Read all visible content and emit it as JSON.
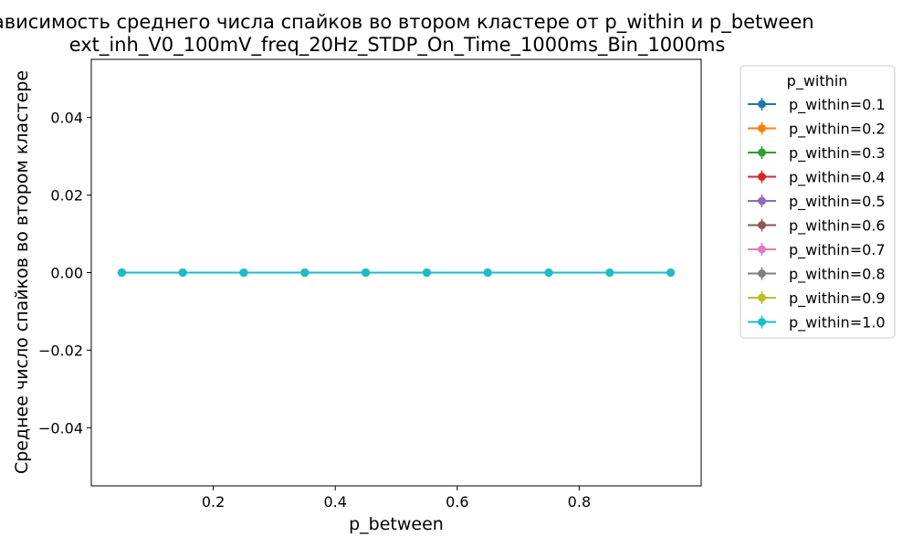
{
  "chart_data": {
    "type": "line",
    "title": "Зависимость среднего числа спайков во втором кластере от p_within и p_between",
    "subtitle": "ext_inh_V0_100mV_freq_20Hz_STDP_On_Time_1000ms_Bin_1000ms",
    "xlabel": "p_between",
    "ylabel": "Среднее число спайков во втором кластере",
    "xlim": [
      0.0,
      1.0
    ],
    "ylim": [
      -0.055,
      0.055
    ],
    "xticks": [
      0.2,
      0.4,
      0.6,
      0.8
    ],
    "xtick_labels": [
      "0.2",
      "0.4",
      "0.6",
      "0.8"
    ],
    "yticks": [
      -0.04,
      -0.02,
      0.0,
      0.02,
      0.04
    ],
    "ytick_labels": [
      "−0.04",
      "−0.02",
      "0.00",
      "0.02",
      "0.04"
    ],
    "grid": false,
    "legend": {
      "title": "p_within",
      "placement": "outside-right"
    },
    "x": [
      0.05,
      0.15,
      0.25,
      0.35,
      0.45,
      0.55,
      0.65,
      0.75,
      0.85,
      0.95
    ],
    "series": [
      {
        "name": "p_within=0.1",
        "color": "#1f77b4",
        "x": [
          0.05,
          0.15,
          0.25,
          0.35
        ],
        "values": [
          0,
          0,
          0,
          0
        ]
      },
      {
        "name": "p_within=0.2",
        "color": "#ff7f0e",
        "x": [
          0.05,
          0.15,
          0.25,
          0.35,
          0.45
        ],
        "values": [
          0,
          0,
          0,
          0,
          0
        ]
      },
      {
        "name": "p_within=0.3",
        "color": "#2ca02c",
        "x": [
          0.05,
          0.15,
          0.25,
          0.35,
          0.45,
          0.55
        ],
        "values": [
          0,
          0,
          0,
          0,
          0,
          0
        ]
      },
      {
        "name": "p_within=0.4",
        "color": "#d62728",
        "x": [
          0.05,
          0.15,
          0.25,
          0.35,
          0.45,
          0.55,
          0.65
        ],
        "values": [
          0,
          0,
          0,
          0,
          0,
          0,
          0
        ]
      },
      {
        "name": "p_within=0.5",
        "color": "#9467bd",
        "x": [
          0.05,
          0.15,
          0.25,
          0.35,
          0.45,
          0.55,
          0.65,
          0.75
        ],
        "values": [
          0,
          0,
          0,
          0,
          0,
          0,
          0,
          0
        ]
      },
      {
        "name": "p_within=0.6",
        "color": "#8c564b",
        "x": [
          0.05,
          0.15,
          0.25,
          0.35,
          0.45,
          0.55,
          0.65,
          0.75,
          0.85
        ],
        "values": [
          0,
          0,
          0,
          0,
          0,
          0,
          0,
          0,
          0
        ]
      },
      {
        "name": "p_within=0.7",
        "color": "#e377c2",
        "x": [
          0.05,
          0.15,
          0.25,
          0.35,
          0.45,
          0.55,
          0.65,
          0.75,
          0.85,
          0.95
        ],
        "values": [
          0,
          0,
          0,
          0,
          0,
          0,
          0,
          0,
          0,
          0
        ]
      },
      {
        "name": "p_within=0.8",
        "color": "#7f7f7f",
        "x": [
          0.05,
          0.15,
          0.25,
          0.35,
          0.45,
          0.55,
          0.65,
          0.75,
          0.85,
          0.95
        ],
        "values": [
          0,
          0,
          0,
          0,
          0,
          0,
          0,
          0,
          0,
          0
        ]
      },
      {
        "name": "p_within=0.9",
        "color": "#bcbd22",
        "x": [
          0.05,
          0.15,
          0.25,
          0.35,
          0.45,
          0.55,
          0.65,
          0.75,
          0.85,
          0.95
        ],
        "values": [
          0,
          0,
          0,
          0,
          0,
          0,
          0,
          0,
          0,
          0
        ]
      },
      {
        "name": "p_within=1.0",
        "color": "#17becf",
        "x": [
          0.05,
          0.15,
          0.25,
          0.35,
          0.45,
          0.55,
          0.65,
          0.75,
          0.85,
          0.95
        ],
        "values": [
          0,
          0,
          0,
          0,
          0,
          0,
          0,
          0,
          0,
          0
        ]
      }
    ]
  }
}
